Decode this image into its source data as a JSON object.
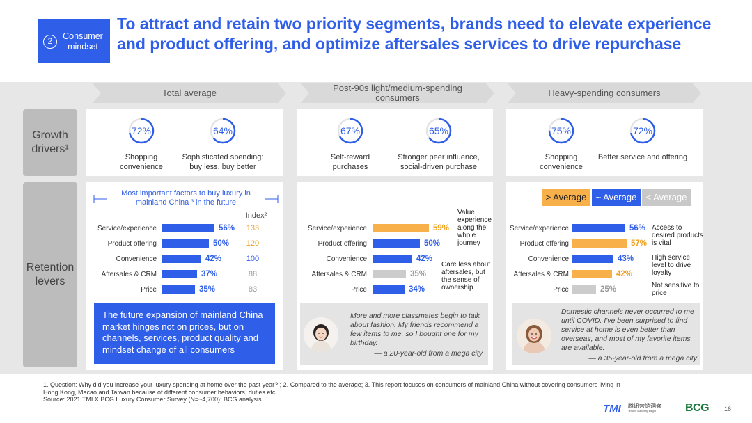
{
  "header": {
    "section_number": "2",
    "section_label": "Consumer mindset",
    "title": "To attract and retain two priority segments, brands need to elevate experience and product offering, and optimize aftersales services to drive repurchase"
  },
  "row_labels": {
    "growth": "Growth drivers¹",
    "retention": "Retention levers"
  },
  "columns": [
    {
      "header": "Total average"
    },
    {
      "header": "Post-90s light/medium-spending consumers"
    },
    {
      "header": "Heavy-spending consumers"
    }
  ],
  "growth_drivers": [
    [
      {
        "value": "72%",
        "pct": 72,
        "label": "Shopping convenience"
      },
      {
        "value": "64%",
        "pct": 64,
        "label": "Sophisticated spending: buy less, buy better"
      }
    ],
    [
      {
        "value": "67%",
        "pct": 67,
        "label": "Self-reward purchases"
      },
      {
        "value": "65%",
        "pct": 65,
        "label": "Stronger peer influence, social-driven purchase"
      }
    ],
    [
      {
        "value": "75%",
        "pct": 75,
        "label": "Shopping convenience"
      },
      {
        "value": "72%",
        "pct": 72,
        "label": "Better service and offering"
      }
    ]
  ],
  "retention": {
    "subtitle": "Most important factors to buy luxury in mainland China ³ in the future",
    "index_header": "Index²",
    "categories": [
      "Service/experience",
      "Product offering",
      "Convenience",
      "Aftersales & CRM",
      "Price"
    ],
    "index_values": [
      "133",
      "120",
      "100",
      "88",
      "83"
    ],
    "index_colors": [
      "#f0a020",
      "#f0a020",
      "#2f5ee8",
      "#999999",
      "#999999"
    ],
    "total": [
      {
        "value": "56%",
        "pct": 56
      },
      {
        "value": "50%",
        "pct": 50
      },
      {
        "value": "42%",
        "pct": 42
      },
      {
        "value": "37%",
        "pct": 37
      },
      {
        "value": "35%",
        "pct": 35
      }
    ],
    "post90": [
      {
        "value": "59%",
        "pct": 59,
        "level": "above"
      },
      {
        "value": "50%",
        "pct": 50,
        "level": "avg"
      },
      {
        "value": "42%",
        "pct": 42,
        "level": "avg"
      },
      {
        "value": "35%",
        "pct": 35,
        "level": "below"
      },
      {
        "value": "34%",
        "pct": 34,
        "level": "avg"
      }
    ],
    "heavy": [
      {
        "value": "56%",
        "pct": 56,
        "level": "avg"
      },
      {
        "value": "57%",
        "pct": 57,
        "level": "above"
      },
      {
        "value": "43%",
        "pct": 43,
        "level": "avg"
      },
      {
        "value": "42%",
        "pct": 42,
        "level": "above"
      },
      {
        "value": "25%",
        "pct": 25,
        "level": "below"
      }
    ],
    "post90_notes": [
      "Value experience along the whole journey",
      "Care less about aftersales, but the sense of ownership"
    ],
    "heavy_notes": [
      "Access to desired products is vital",
      "High service level to drive loyalty",
      "Not sensitive to price"
    ],
    "total_callout": "The future expansion of mainland China market hinges not on prices, but on channels, services, product quality and mindset change of all consumers"
  },
  "legend": {
    "above": "> Average",
    "avg": "~ Average",
    "below": "< Average"
  },
  "quotes": [
    {
      "text": "More and more classmates begin to talk about fashion. My friends recommend a few items to me, so I bought one for my birthday.",
      "attribution": "— a 20-year-old from a mega city"
    },
    {
      "text": "Domestic channels never occurred to me until COVID. I've been surprised to find service at home is even better than overseas, and most of my favorite items are available.",
      "attribution": "— a 35-year-old from a mega city"
    }
  ],
  "footnote": {
    "line1": "1. Question: Why did you increase your luxury spending at home over the past year? ; 2. Compared to the average; 3. This report focuses on consumers of mainland China without covering consumers living in Hong Kong, Macao and Taiwan because of different consumer behaviors, duties etc.",
    "line2": "Source: 2021 TMI X BCG Luxury Consumer Survey (N=~4,700); BCG analysis"
  },
  "logos": {
    "tmi": "TMI",
    "tmi_cn": "腾讯营销洞察",
    "tmi_en": "Tencent Marketing Insight",
    "bcg": "BCG"
  },
  "page_number": "16",
  "colors": {
    "blue": "#2f5ee8",
    "orange": "#f8b04a",
    "gray": "#cccccc",
    "orange_text": "#f0a020",
    "gray_text": "#999999"
  }
}
